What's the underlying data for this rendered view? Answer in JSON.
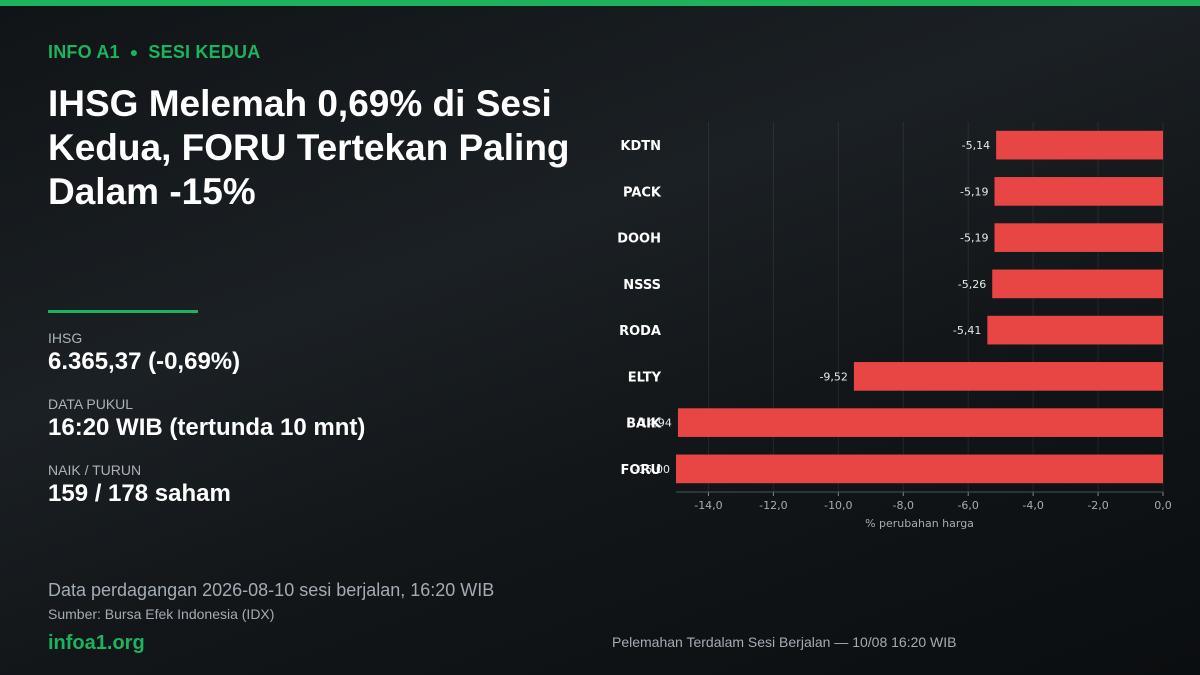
{
  "kicker": {
    "brand": "INFO A1",
    "section": "SESI KEDUA"
  },
  "headline": "IHSG Melemah 0,69% di Sesi Kedua, FORU Tertekan Paling Dalam -15%",
  "stats": [
    {
      "label": "IHSG",
      "value": "6.365,37  (-0,69%)"
    },
    {
      "label": "DATA PUKUL",
      "value": "16:20 WIB (tertunda 10 mnt)"
    },
    {
      "label": "NAIK / TURUN",
      "value": "159 / 178 saham"
    }
  ],
  "footer": {
    "note": "Data perdagangan 2026-08-10 sesi berjalan, 16:20 WIB",
    "source": "Sumber: Bursa Efek Indonesia (IDX)",
    "site": "infoa1.org"
  },
  "caption": "Pelemahan Terdalam Sesi Berjalan — 10/08 16:20 WIB",
  "colors": {
    "accent": "#1db35c",
    "bar": "#e84545",
    "background": "#14181b"
  },
  "chart_data": {
    "type": "bar",
    "orientation": "horizontal",
    "categories": [
      "KDTN",
      "PACK",
      "DOOH",
      "NSSS",
      "RODA",
      "ELTY",
      "BAIK",
      "FORU"
    ],
    "values": [
      -5.14,
      -5.19,
      -5.19,
      -5.26,
      -5.41,
      -9.52,
      -14.94,
      -15.0
    ],
    "value_labels": [
      "-5,14",
      "-5,19",
      "-5,19",
      "-5,26",
      "-5,41",
      "-9,52",
      "-14,94",
      "-15,00"
    ],
    "xlabel": "% perubahan harga",
    "xlim": [
      -15,
      0
    ],
    "xticks": [
      -14,
      -12,
      -10,
      -8,
      -6,
      -4,
      -2,
      0
    ],
    "xtick_labels": [
      "-14,0",
      "-12,0",
      "-10,0",
      "-8,0",
      "-6,0",
      "-4,0",
      "-2,0",
      "0,0"
    ],
    "grid": true
  }
}
